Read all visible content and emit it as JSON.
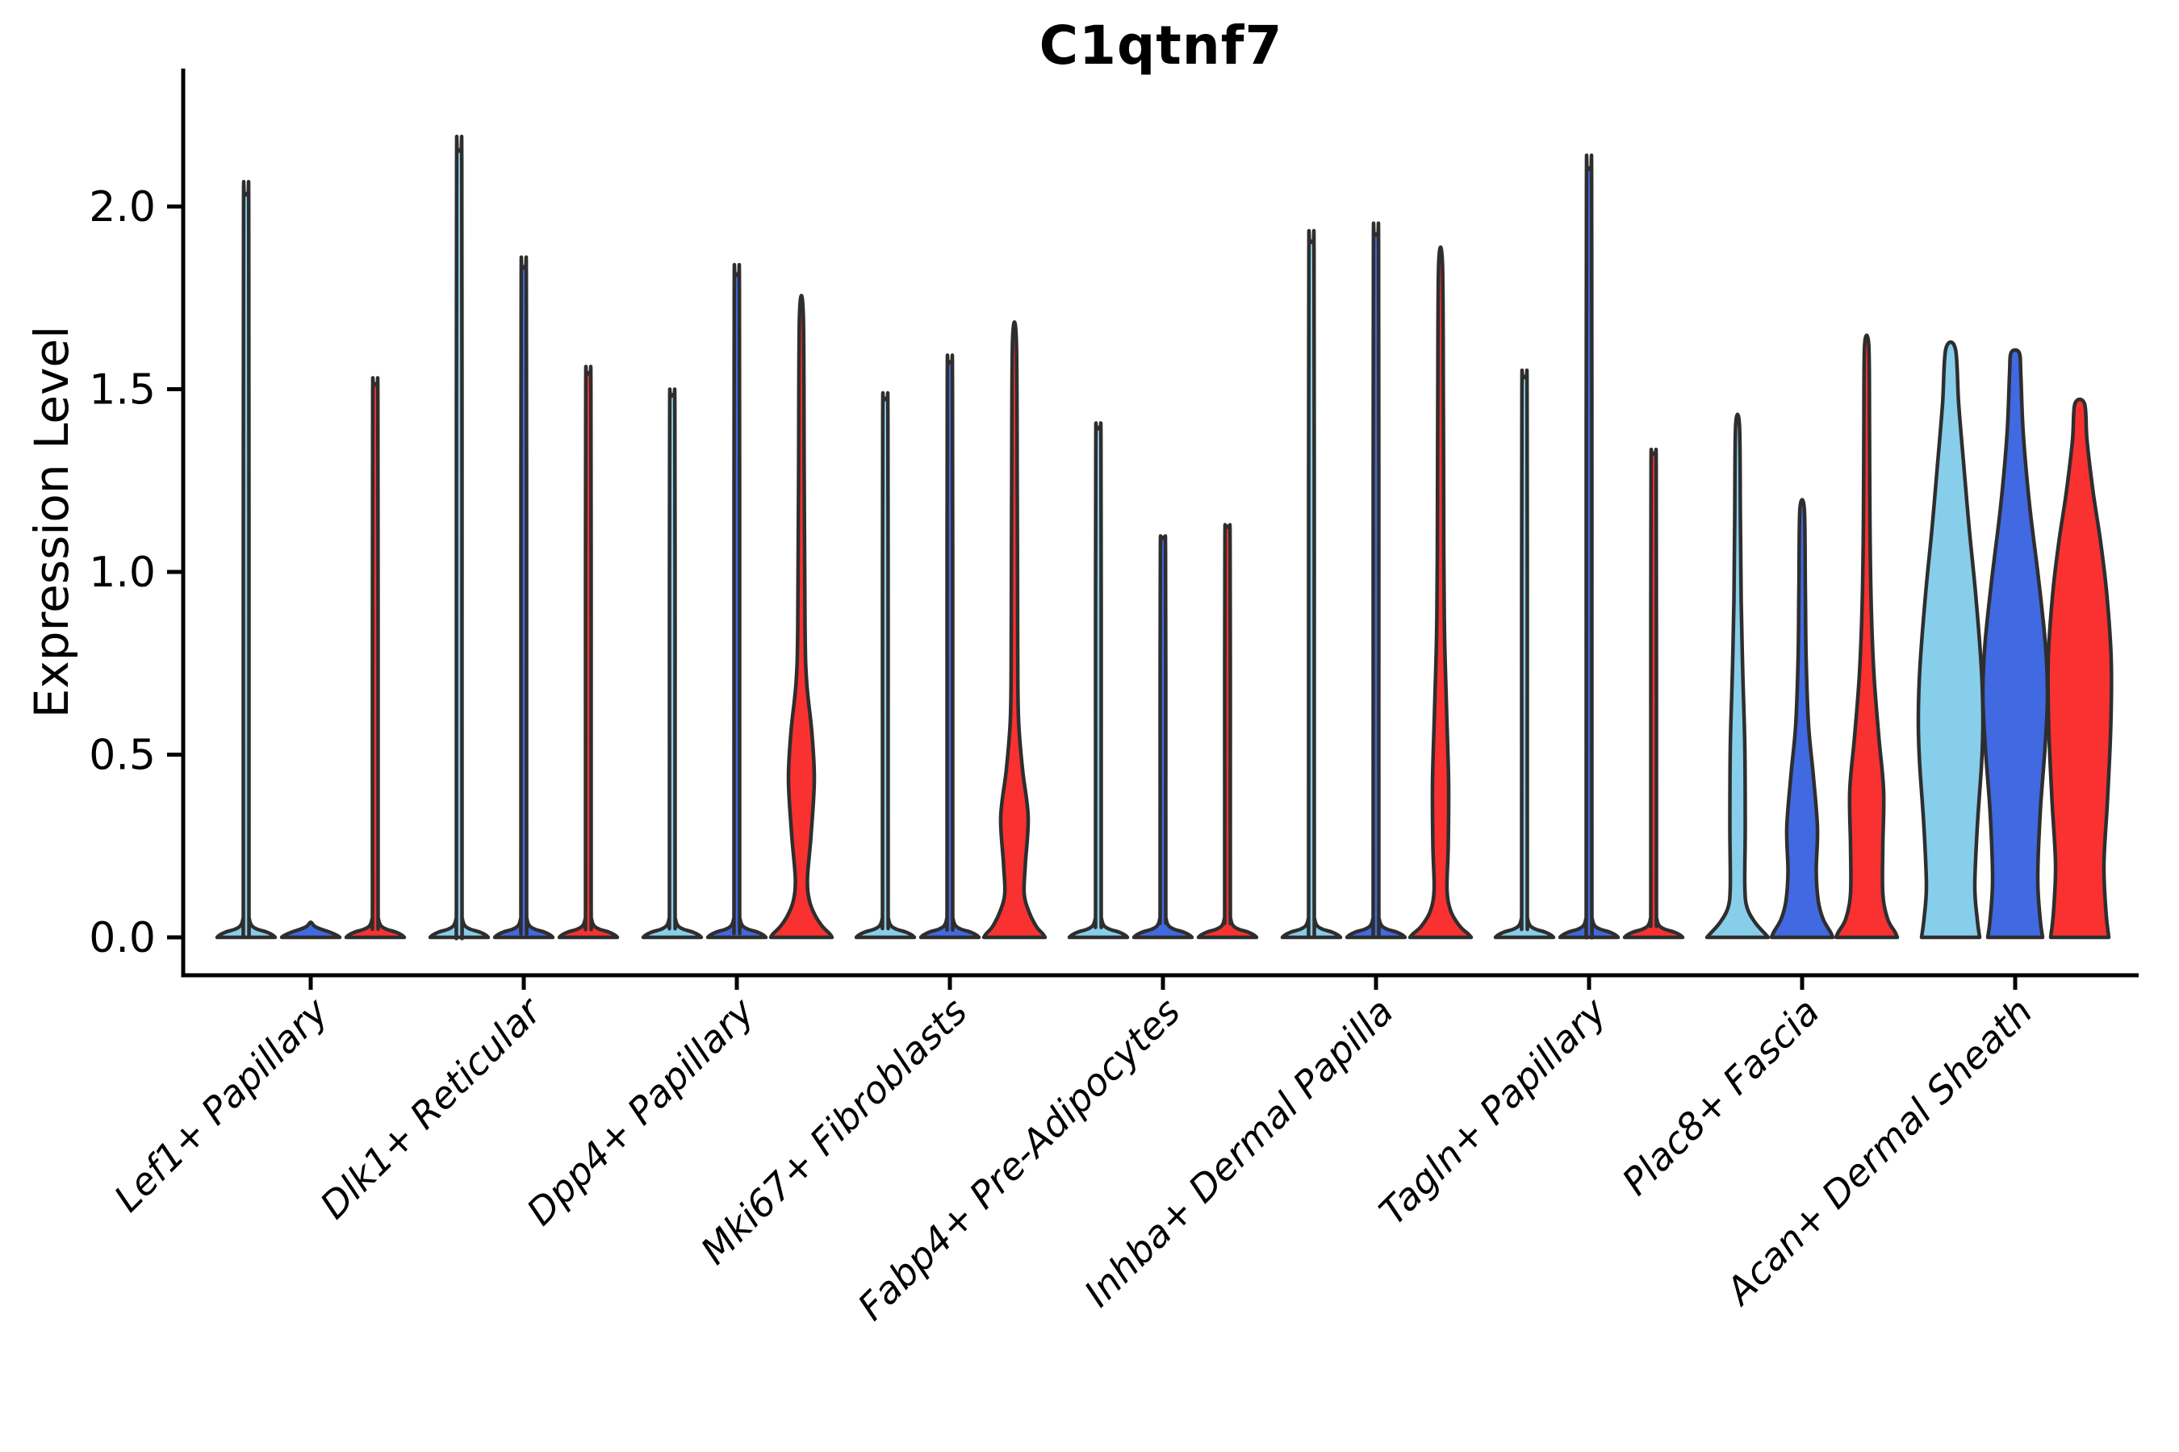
{
  "title": "C1qtnf7",
  "y_axis": {
    "label": "Expression Level",
    "tick_labels": [
      "0.0",
      "0.5",
      "1.0",
      "1.5",
      "2.0"
    ],
    "tick_values": [
      0,
      0.5,
      1.0,
      1.5,
      2.0
    ],
    "limit": [
      0,
      2.38
    ]
  },
  "colors": {
    "series": [
      "#87CEEB",
      "#4169E1",
      "#F93131"
    ],
    "violin_outline": "#2E2E2E",
    "axis": "#000000",
    "text": "#000000",
    "background": "#FFFFFF"
  },
  "chart_data": {
    "type": "violin",
    "title": "C1qtnf7",
    "xlabel": "",
    "ylabel": "Expression Level",
    "legend_position": "none",
    "grid": false,
    "ylim": [
      0,
      2.38
    ],
    "yticks": [
      0,
      0.5,
      1.0,
      1.5,
      2.0
    ],
    "ytick_labels": [
      "0.0",
      "0.5",
      "1.0",
      "1.5",
      "2.0"
    ],
    "x_labels_rotation_deg": 45,
    "series_colors": [
      "#87CEEB",
      "#4169E1",
      "#F93131"
    ],
    "categories": [
      "Lef1+ Papillary",
      "Dlk1+ Reticular",
      "Dpp4+ Papillary",
      "Mki67+ Fibroblasts",
      "Fabp4+ Pre-Adipocytes",
      "Inhba+ Dermal Papilla",
      "Tagln+ Papillary",
      "Plac8+ Fascia",
      "Acan+ Dermal Sheath"
    ],
    "groups": [
      {
        "label": "Lef1+ Papillary",
        "violins": [
          {
            "series": 1,
            "max_expression": 2.03,
            "shape": "spike"
          },
          {
            "series": 2,
            "max_expression": 0.0,
            "shape": "flat"
          },
          {
            "series": 3,
            "max_expression": 1.51,
            "shape": "spike"
          }
        ]
      },
      {
        "label": "Dlk1+ Reticular",
        "violins": [
          {
            "series": 1,
            "max_expression": 2.15,
            "shape": "spike"
          },
          {
            "series": 2,
            "max_expression": 1.83,
            "shape": "spike"
          },
          {
            "series": 3,
            "max_expression": 1.54,
            "shape": "spike"
          }
        ]
      },
      {
        "label": "Dpp4+ Papillary",
        "violins": [
          {
            "series": 1,
            "max_expression": 1.48,
            "shape": "spike"
          },
          {
            "series": 2,
            "max_expression": 1.81,
            "shape": "spike"
          },
          {
            "series": 3,
            "max_expression": 1.7,
            "shape": "custom",
            "profile": [
              [
                0,
                38
              ],
              [
                0.01,
                35
              ],
              [
                0.03,
                26
              ],
              [
                0.06,
                17
              ],
              [
                0.1,
                10
              ],
              [
                0.16,
                7.5
              ],
              [
                0.28,
                12
              ],
              [
                0.43,
                16
              ],
              [
                0.56,
                13
              ],
              [
                0.7,
                6.5
              ],
              [
                0.85,
                4.5
              ],
              [
                1.25,
                3.5
              ],
              [
                1.7,
                2.4
              ]
            ]
          }
        ]
      },
      {
        "label": "Mki67+ Fibroblasts",
        "violins": [
          {
            "series": 1,
            "max_expression": 1.47,
            "shape": "spike"
          },
          {
            "series": 2,
            "max_expression": 1.57,
            "shape": "spike"
          },
          {
            "series": 3,
            "max_expression": 1.63,
            "shape": "custom",
            "profile": [
              [
                0,
                38
              ],
              [
                0.01,
                35
              ],
              [
                0.03,
                27
              ],
              [
                0.07,
                18
              ],
              [
                0.12,
                12
              ],
              [
                0.2,
                13.5
              ],
              [
                0.33,
                17
              ],
              [
                0.46,
                10
              ],
              [
                0.6,
                5
              ],
              [
                0.8,
                4
              ],
              [
                1.2,
                3.5
              ],
              [
                1.63,
                2.4
              ]
            ]
          }
        ]
      },
      {
        "label": "Fabp4+ Pre-Adipocytes",
        "violins": [
          {
            "series": 1,
            "max_expression": 1.39,
            "shape": "spike"
          },
          {
            "series": 2,
            "max_expression": 1.09,
            "shape": "spike"
          },
          {
            "series": 3,
            "max_expression": 1.12,
            "shape": "spike"
          }
        ]
      },
      {
        "label": "Inhba+ Dermal Papilla",
        "violins": [
          {
            "series": 1,
            "max_expression": 1.9,
            "shape": "spike"
          },
          {
            "series": 2,
            "max_expression": 1.92,
            "shape": "spike"
          },
          {
            "series": 3,
            "max_expression": 1.84,
            "shape": "custom",
            "profile": [
              [
                0,
                38
              ],
              [
                0.01,
                34
              ],
              [
                0.03,
                24
              ],
              [
                0.07,
                13
              ],
              [
                0.13,
                8
              ],
              [
                0.25,
                9.5
              ],
              [
                0.42,
                10
              ],
              [
                0.62,
                7.5
              ],
              [
                0.82,
                5
              ],
              [
                1.05,
                4
              ],
              [
                1.45,
                3.5
              ],
              [
                1.84,
                2.4
              ]
            ]
          }
        ]
      },
      {
        "label": "Tagln+ Papillary",
        "violins": [
          {
            "series": 1,
            "max_expression": 1.53,
            "shape": "spike"
          },
          {
            "series": 2,
            "max_expression": 2.1,
            "shape": "spike"
          },
          {
            "series": 3,
            "max_expression": 1.32,
            "shape": "spike"
          }
        ]
      },
      {
        "label": "Plac8+ Fascia",
        "violins": [
          {
            "series": 1,
            "max_expression": 1.4,
            "shape": "custom",
            "profile": [
              [
                0,
                38
              ],
              [
                0.01,
                34
              ],
              [
                0.04,
                22
              ],
              [
                0.08,
                12
              ],
              [
                0.14,
                9
              ],
              [
                0.3,
                9.5
              ],
              [
                0.52,
                9
              ],
              [
                0.72,
                6.5
              ],
              [
                0.92,
                4.5
              ],
              [
                1.15,
                3.5
              ],
              [
                1.4,
                2.4
              ]
            ]
          },
          {
            "series": 2,
            "max_expression": 1.17,
            "shape": "custom",
            "profile": [
              [
                0,
                38
              ],
              [
                0.015,
                35
              ],
              [
                0.05,
                26
              ],
              [
                0.1,
                20
              ],
              [
                0.18,
                17.5
              ],
              [
                0.3,
                19
              ],
              [
                0.44,
                14
              ],
              [
                0.58,
                8
              ],
              [
                0.76,
                5
              ],
              [
                0.95,
                4
              ],
              [
                1.17,
                2.8
              ]
            ]
          },
          {
            "series": 3,
            "max_expression": 1.62,
            "shape": "custom",
            "profile": [
              [
                0,
                38
              ],
              [
                0.015,
                35
              ],
              [
                0.05,
                26
              ],
              [
                0.12,
                20
              ],
              [
                0.25,
                20
              ],
              [
                0.4,
                21
              ],
              [
                0.55,
                15
              ],
              [
                0.72,
                9
              ],
              [
                0.92,
                5.5
              ],
              [
                1.15,
                4
              ],
              [
                1.4,
                3.5
              ],
              [
                1.62,
                2.6
              ]
            ]
          }
        ]
      },
      {
        "label": "Acan+ Dermal Sheath",
        "violins": [
          {
            "series": 1,
            "max_expression": 1.61,
            "shape": "custom",
            "profile": [
              [
                0,
                36
              ],
              [
                0.05,
                33
              ],
              [
                0.14,
                30
              ],
              [
                0.3,
                33
              ],
              [
                0.48,
                38.5
              ],
              [
                0.6,
                40
              ],
              [
                0.74,
                38
              ],
              [
                0.94,
                31
              ],
              [
                1.12,
                23
              ],
              [
                1.3,
                16
              ],
              [
                1.46,
                10
              ],
              [
                1.61,
                6
              ]
            ]
          },
          {
            "series": 2,
            "max_expression": 1.6,
            "shape": "custom",
            "profile": [
              [
                0,
                34
              ],
              [
                0.05,
                31
              ],
              [
                0.16,
                28
              ],
              [
                0.34,
                31
              ],
              [
                0.52,
                37
              ],
              [
                0.66,
                40
              ],
              [
                0.8,
                37.5
              ],
              [
                0.98,
                29
              ],
              [
                1.18,
                18
              ],
              [
                1.38,
                10
              ],
              [
                1.54,
                7
              ],
              [
                1.6,
                5
              ]
            ]
          },
          {
            "series": 3,
            "max_expression": 1.46,
            "shape": "custom",
            "profile": [
              [
                0,
                36
              ],
              [
                0.07,
                32.5
              ],
              [
                0.2,
                30
              ],
              [
                0.38,
                34.5
              ],
              [
                0.58,
                38.5
              ],
              [
                0.76,
                39
              ],
              [
                0.94,
                33.5
              ],
              [
                1.08,
                26
              ],
              [
                1.22,
                16.5
              ],
              [
                1.36,
                9
              ],
              [
                1.46,
                6
              ]
            ]
          }
        ]
      }
    ]
  }
}
